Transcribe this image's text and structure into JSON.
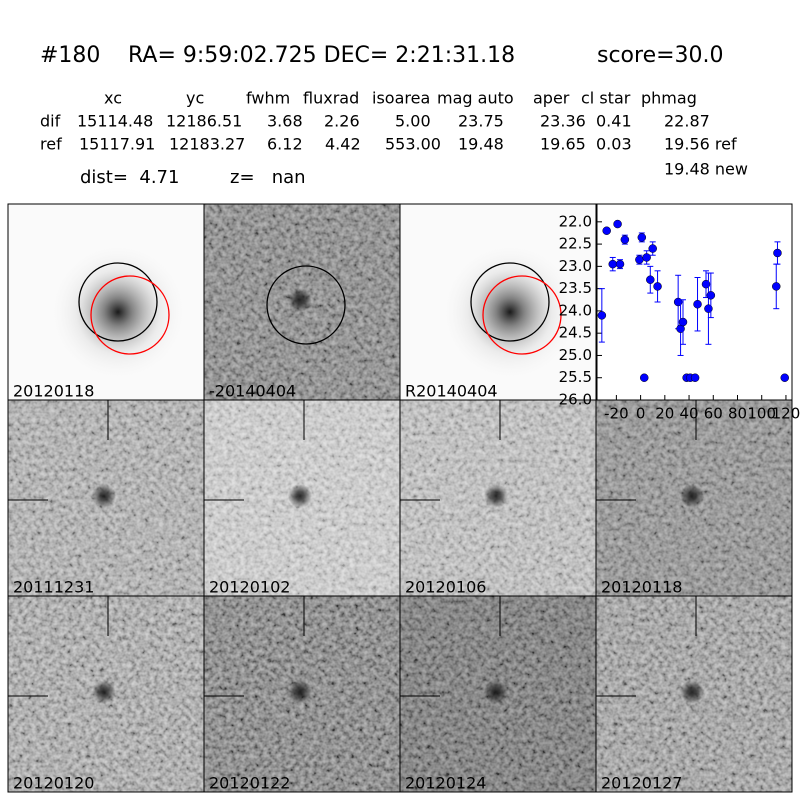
{
  "header": {
    "title": [
      "#180",
      "RA= 9:59:02.725 DEC= 2:21:31.18",
      "score=30.0"
    ],
    "dist": "dist=  4.71",
    "z": "z=   nan"
  },
  "table": {
    "columns": [
      "xc",
      "yc",
      "fwhm",
      "fluxrad",
      "isoarea",
      "mag auto",
      "aper",
      "cl star",
      "phmag"
    ],
    "rows": [
      [
        "dif",
        "15114.48",
        "12186.51",
        "3.68",
        "2.26",
        "5.00",
        "23.75",
        "23.36",
        "0.41",
        "22.87"
      ],
      [
        "ref",
        "15117.91",
        "12183.27",
        "6.12",
        "4.42",
        "553.00",
        "19.48",
        "19.65",
        "0.03",
        "19.56 ref"
      ]
    ],
    "note": "19.48 new"
  },
  "stamps": [
    {
      "label": "20120118",
      "label_color": "#000000"
    },
    {
      "label": "-20140404",
      "label_color": "#000000"
    },
    {
      "label": "R20140404",
      "label_color": "#000000"
    },
    {
      "label": "20111231",
      "label_color": "#000000"
    },
    {
      "label": "20120102",
      "label_color": "#000000"
    },
    {
      "label": "20120106",
      "label_color": "#000000"
    },
    {
      "label": "20120118",
      "label_color": "#ff0000"
    },
    {
      "label": "20120120",
      "label_color": "#000000"
    },
    {
      "label": "20120122",
      "label_color": "#000000"
    },
    {
      "label": "20120124",
      "label_color": "#000000"
    },
    {
      "label": "20120127",
      "label_color": "#000000"
    }
  ],
  "chart_data": {
    "type": "errorbar",
    "x": [
      -32,
      -28,
      -23,
      -19,
      -17,
      -13,
      -1,
      1,
      3,
      5,
      8,
      10,
      14,
      31,
      33,
      35,
      38,
      41,
      45,
      47,
      54,
      56,
      58,
      112,
      113,
      119
    ],
    "series": [
      {
        "color": "#0000ff",
        "values": [
          24.1,
          22.2,
          22.95,
          22.05,
          22.95,
          22.4,
          22.85,
          22.35,
          25.5,
          22.8,
          23.3,
          22.6,
          23.45,
          23.8,
          24.4,
          24.25,
          25.5,
          25.5,
          25.5,
          23.85,
          23.4,
          23.95,
          23.65,
          23.45,
          22.7,
          25.5
        ],
        "errors": [
          0.6,
          0.05,
          0.15,
          0.05,
          0.1,
          0.1,
          0.1,
          0.1,
          0.05,
          0.15,
          0.3,
          0.15,
          0.35,
          0.6,
          0.6,
          0.5,
          0.05,
          0.05,
          0.05,
          0.6,
          0.3,
          0.8,
          0.5,
          0.5,
          0.25,
          0.05
        ]
      }
    ],
    "xlim": [
      -36,
      125
    ],
    "ylim": [
      26.0,
      21.6
    ],
    "xticks": [
      -20,
      0,
      20,
      40,
      60,
      80,
      100,
      120
    ],
    "yticks": [
      {
        "value": 22.0,
        "label": "22.0"
      },
      22.5,
      {
        "value": 23.0,
        "label": "23.0"
      },
      23.5,
      {
        "value": 24.0,
        "label": "24.0"
      },
      24.5,
      {
        "value": 25.0,
        "label": "25.0"
      },
      25.5,
      {
        "value": 26.0,
        "label": "26.0"
      }
    ]
  }
}
